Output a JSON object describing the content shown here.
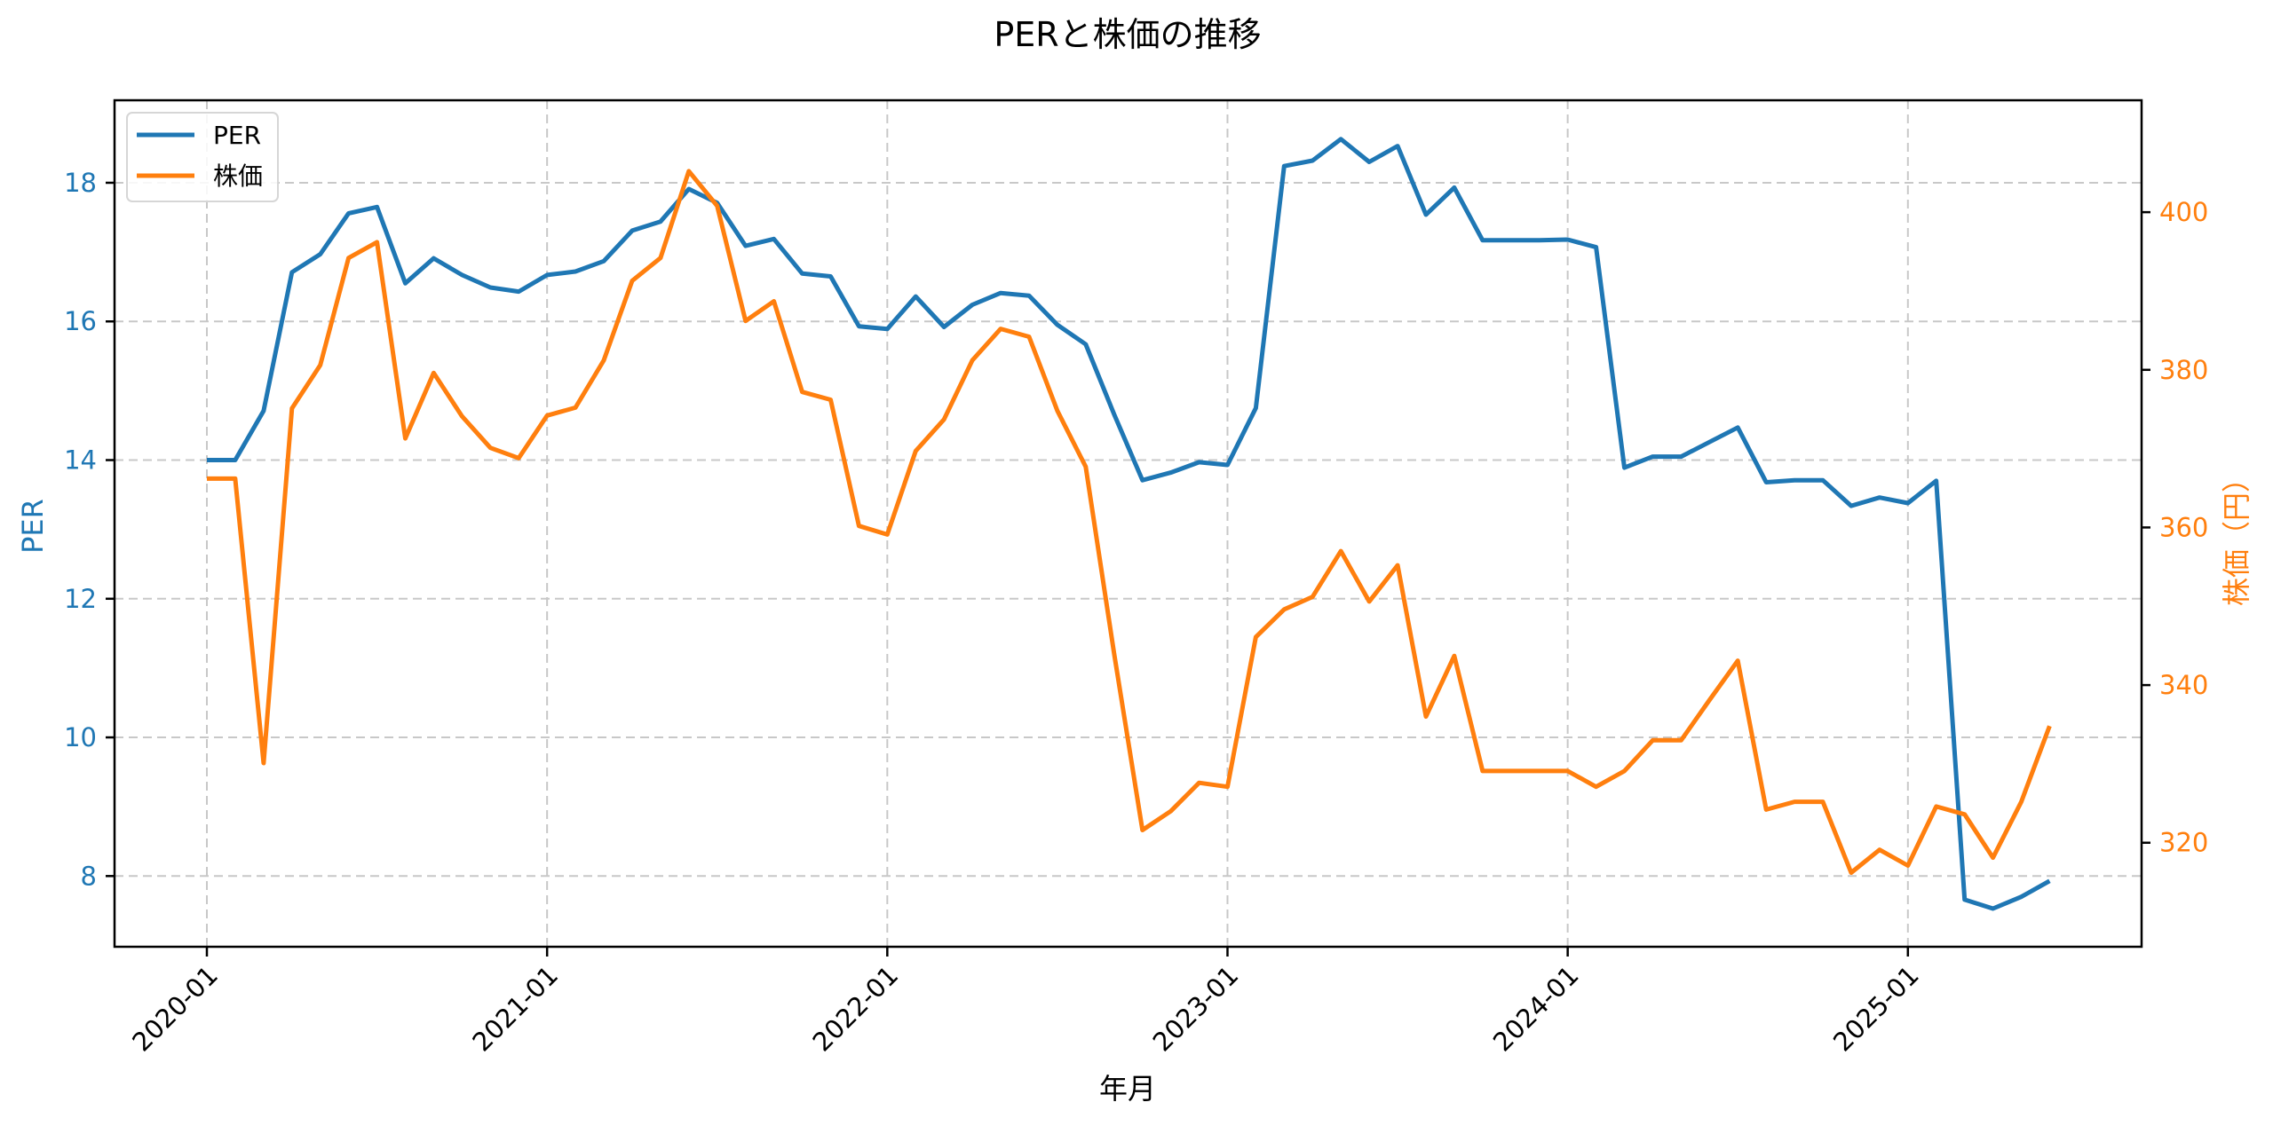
{
  "chart_data": {
    "type": "line",
    "title": "PERと株価の推移",
    "xlabel": "年月",
    "ylabel": "PER",
    "ylabel_right": "株価（円）",
    "x_tick_labels": [
      "2020-01",
      "2021-01",
      "2022-01",
      "2023-01",
      "2024-01",
      "2025-01"
    ],
    "y_ticks_left": [
      8,
      10,
      12,
      14,
      16,
      18
    ],
    "y_ticks_right": [
      320,
      340,
      360,
      380,
      400
    ],
    "ylim_left": [
      6.98,
      19.19
    ],
    "ylim_right": [
      306.8,
      414.2
    ],
    "grid": true,
    "legend_position": "upper left",
    "x": [
      "2020-01",
      "2020-02",
      "2020-03",
      "2020-04",
      "2020-05",
      "2020-06",
      "2020-07",
      "2020-08",
      "2020-09",
      "2020-10",
      "2020-11",
      "2020-12",
      "2021-01",
      "2021-02",
      "2021-03",
      "2021-04",
      "2021-05",
      "2021-06",
      "2021-07",
      "2021-08",
      "2021-09",
      "2021-10",
      "2021-11",
      "2021-12",
      "2022-01",
      "2022-02",
      "2022-03",
      "2022-04",
      "2022-05",
      "2022-06",
      "2022-07",
      "2022-08",
      "2022-09",
      "2022-10",
      "2022-11",
      "2022-12",
      "2023-01",
      "2023-02",
      "2023-03",
      "2023-04",
      "2023-05",
      "2023-06",
      "2023-07",
      "2023-08",
      "2023-09",
      "2023-10",
      "2023-11",
      "2023-12",
      "2024-01",
      "2024-02",
      "2024-03",
      "2024-04",
      "2024-05",
      "2024-06",
      "2024-07",
      "2024-08",
      "2024-09",
      "2024-10",
      "2024-11",
      "2024-12",
      "2025-01",
      "2025-02",
      "2025-03",
      "2025-04",
      "2025-05",
      "2025-06"
    ],
    "series": [
      {
        "name": "PER",
        "axis": "left",
        "color": "#1f77b4",
        "values": [
          14.0,
          14.0,
          14.71,
          16.71,
          16.97,
          17.56,
          17.65,
          16.55,
          16.91,
          16.67,
          16.49,
          16.43,
          16.67,
          16.72,
          16.87,
          17.31,
          17.44,
          17.91,
          17.71,
          17.09,
          17.19,
          16.69,
          16.65,
          15.93,
          15.89,
          16.36,
          15.92,
          16.24,
          16.41,
          16.37,
          15.95,
          15.67,
          14.66,
          13.71,
          13.82,
          13.97,
          13.93,
          14.75,
          18.24,
          18.32,
          18.63,
          18.3,
          18.53,
          17.54,
          17.93,
          17.17,
          17.17,
          17.17,
          17.18,
          17.07,
          13.89,
          14.05,
          14.05,
          14.26,
          14.47,
          13.68,
          13.71,
          13.71,
          13.34,
          13.46,
          13.38,
          13.7,
          7.66,
          7.53,
          7.7,
          7.93
        ]
      },
      {
        "name": "株価",
        "axis": "right",
        "color": "#ff7f0e",
        "values": [
          366.2,
          366.2,
          330.1,
          375.1,
          380.6,
          394.2,
          396.2,
          371.3,
          379.6,
          374.1,
          370.1,
          368.8,
          374.2,
          375.2,
          381.2,
          391.3,
          394.2,
          405.2,
          400.8,
          386.2,
          388.7,
          377.2,
          376.2,
          360.2,
          359.1,
          369.7,
          373.7,
          381.2,
          385.2,
          384.2,
          374.8,
          367.7,
          344.0,
          321.6,
          324.0,
          327.6,
          327.1,
          346.1,
          349.6,
          351.2,
          357.0,
          350.6,
          355.2,
          336.0,
          343.7,
          329.1,
          329.1,
          329.1,
          329.1,
          327.1,
          329.1,
          333.0,
          333.0,
          338.1,
          343.1,
          324.2,
          325.2,
          325.2,
          316.2,
          319.1,
          317.1,
          324.6,
          323.6,
          318.1,
          325.2,
          334.8
        ]
      }
    ]
  },
  "colors": {
    "per": "#1f77b4",
    "price": "#ff7f0e",
    "grid": "#c8c8c8",
    "axis": "#000000"
  }
}
